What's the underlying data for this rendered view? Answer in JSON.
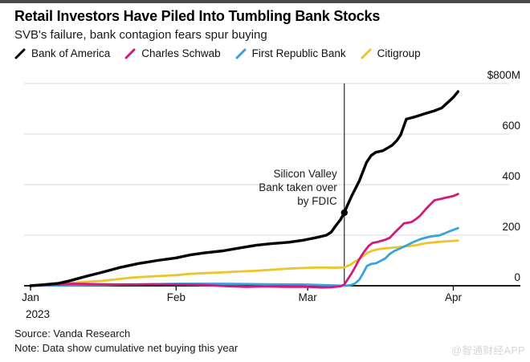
{
  "header": {
    "title": "Retail Investors Have Piled Into Tumbling Bank Stocks",
    "subtitle": "SVB's failure, bank contagion fears spur buying"
  },
  "legend": [
    {
      "label": "Bank of America",
      "color": "#000000"
    },
    {
      "label": "Charles Schwab",
      "color": "#d3197d"
    },
    {
      "label": "First Republic Bank",
      "color": "#36a3dd"
    },
    {
      "label": "Citigroup",
      "color": "#eec42a"
    }
  ],
  "chart_data": {
    "type": "line",
    "title": "Retail Investors Have Piled Into Tumbling Bank Stocks",
    "subtitle": "SVB's failure, bank contagion fears spur buying",
    "unit": "USD millions, cumulative net buying",
    "x_axis": {
      "note": "days since Jan 1 2023",
      "domain_days": [
        0,
        103
      ],
      "months": [
        {
          "label": "Jan",
          "day": 0,
          "year": "2023"
        },
        {
          "label": "Feb",
          "day": 31
        },
        {
          "label": "Mar",
          "day": 59
        },
        {
          "label": "Apr",
          "day": 90
        }
      ]
    },
    "y_axis": {
      "range": [
        0,
        800
      ],
      "ticks": [
        {
          "label": "$800M",
          "value": 800
        },
        {
          "label": "600",
          "value": 600
        },
        {
          "label": "400",
          "value": 400
        },
        {
          "label": "200",
          "value": 200
        },
        {
          "label": "0",
          "value": 0
        }
      ]
    },
    "annotation": {
      "lines": [
        "Silicon Valley",
        "Bank taken over",
        "by FDIC"
      ],
      "event_day": 66.8,
      "dot_value": 289
    },
    "series": [
      {
        "name": "Bank of America",
        "color": "#000000",
        "points": [
          [
            0,
            0
          ],
          [
            2,
            3
          ],
          [
            4,
            6
          ],
          [
            6,
            10
          ],
          [
            8,
            18
          ],
          [
            10,
            28
          ],
          [
            12,
            38
          ],
          [
            15,
            52
          ],
          [
            17,
            62
          ],
          [
            19,
            72
          ],
          [
            21,
            80
          ],
          [
            23,
            88
          ],
          [
            25,
            94
          ],
          [
            27,
            100
          ],
          [
            29,
            105
          ],
          [
            31,
            110
          ],
          [
            34,
            122
          ],
          [
            37,
            130
          ],
          [
            41,
            138
          ],
          [
            44,
            148
          ],
          [
            48,
            160
          ],
          [
            51,
            166
          ],
          [
            55,
            172
          ],
          [
            58,
            180
          ],
          [
            61,
            191
          ],
          [
            63,
            200
          ],
          [
            64,
            212
          ],
          [
            65,
            238
          ],
          [
            66,
            262
          ],
          [
            66.8,
            289
          ],
          [
            67.5,
            320
          ],
          [
            68.5,
            360
          ],
          [
            70,
            415
          ],
          [
            71.5,
            487
          ],
          [
            72.5,
            515
          ],
          [
            73.5,
            528
          ],
          [
            75,
            534
          ],
          [
            77,
            556
          ],
          [
            78,
            575
          ],
          [
            78.8,
            597
          ],
          [
            80,
            659
          ],
          [
            82,
            669
          ],
          [
            84,
            681
          ],
          [
            86,
            692
          ],
          [
            87.5,
            703
          ],
          [
            89,
            728
          ],
          [
            90,
            745
          ],
          [
            91,
            768
          ]
        ]
      },
      {
        "name": "Charles Schwab",
        "color": "#d3197d",
        "points": [
          [
            0,
            0
          ],
          [
            3,
            3
          ],
          [
            6,
            5
          ],
          [
            9,
            8
          ],
          [
            12,
            7
          ],
          [
            15,
            6
          ],
          [
            18,
            5
          ],
          [
            22,
            5
          ],
          [
            26,
            6
          ],
          [
            31,
            5
          ],
          [
            35,
            4
          ],
          [
            38,
            2
          ],
          [
            42,
            -2
          ],
          [
            46,
            -4
          ],
          [
            50,
            -3
          ],
          [
            54,
            -4
          ],
          [
            58,
            -4
          ],
          [
            60,
            -5
          ],
          [
            62,
            -7
          ],
          [
            64,
            -6
          ],
          [
            66,
            -2
          ],
          [
            66.8,
            5
          ],
          [
            67.5,
            25
          ],
          [
            68.3,
            48
          ],
          [
            69,
            70
          ],
          [
            70,
            105
          ],
          [
            71,
            134
          ],
          [
            72,
            158
          ],
          [
            72.8,
            169
          ],
          [
            74,
            174
          ],
          [
            75.5,
            182
          ],
          [
            76.5,
            190
          ],
          [
            77.5,
            210
          ],
          [
            78.5,
            228
          ],
          [
            79.5,
            247
          ],
          [
            81,
            251
          ],
          [
            82,
            263
          ],
          [
            83,
            278
          ],
          [
            84,
            300
          ],
          [
            85,
            320
          ],
          [
            86,
            338
          ],
          [
            87.5,
            344
          ],
          [
            88.5,
            349
          ],
          [
            90,
            355
          ],
          [
            91,
            363
          ]
        ]
      },
      {
        "name": "First Republic Bank",
        "color": "#36a3dd",
        "points": [
          [
            0,
            0
          ],
          [
            5,
            1
          ],
          [
            10,
            2
          ],
          [
            15,
            3
          ],
          [
            20,
            5
          ],
          [
            25,
            6
          ],
          [
            31,
            8
          ],
          [
            35,
            8
          ],
          [
            40,
            8
          ],
          [
            45,
            7
          ],
          [
            50,
            6
          ],
          [
            55,
            5
          ],
          [
            58,
            5
          ],
          [
            62,
            3
          ],
          [
            65,
            1
          ],
          [
            66.8,
            0
          ],
          [
            68,
            2
          ],
          [
            69,
            8
          ],
          [
            70,
            24
          ],
          [
            70.8,
            50
          ],
          [
            71.6,
            78
          ],
          [
            72.5,
            86
          ],
          [
            73.5,
            89
          ],
          [
            74.5,
            98
          ],
          [
            75.5,
            108
          ],
          [
            76.5,
            126
          ],
          [
            77.5,
            138
          ],
          [
            78.5,
            146
          ],
          [
            80,
            159
          ],
          [
            81.5,
            173
          ],
          [
            83,
            184
          ],
          [
            84.5,
            192
          ],
          [
            86,
            197
          ],
          [
            87,
            199
          ],
          [
            88,
            206
          ],
          [
            89,
            214
          ],
          [
            90,
            221
          ],
          [
            91,
            228
          ]
        ]
      },
      {
        "name": "Citigroup",
        "color": "#eec42a",
        "points": [
          [
            0,
            0
          ],
          [
            2,
            2
          ],
          [
            4,
            4
          ],
          [
            6,
            6
          ],
          [
            8,
            10
          ],
          [
            10,
            13
          ],
          [
            13,
            17
          ],
          [
            15,
            19
          ],
          [
            17,
            23
          ],
          [
            19,
            27
          ],
          [
            21,
            31
          ],
          [
            23,
            34
          ],
          [
            25,
            36
          ],
          [
            27,
            38
          ],
          [
            29,
            40
          ],
          [
            31,
            42
          ],
          [
            34,
            47
          ],
          [
            37,
            50
          ],
          [
            41,
            53
          ],
          [
            44,
            56
          ],
          [
            48,
            59
          ],
          [
            51,
            63
          ],
          [
            55,
            68
          ],
          [
            58,
            70
          ],
          [
            61,
            72
          ],
          [
            63,
            72
          ],
          [
            65,
            71
          ],
          [
            66.8,
            73
          ],
          [
            68,
            82
          ],
          [
            69,
            95
          ],
          [
            70,
            106
          ],
          [
            71,
            120
          ],
          [
            71.8,
            131
          ],
          [
            73,
            140
          ],
          [
            74.5,
            146
          ],
          [
            76,
            149
          ],
          [
            78,
            152
          ],
          [
            80,
            156
          ],
          [
            82,
            160
          ],
          [
            84,
            168
          ],
          [
            86,
            172
          ],
          [
            88,
            175
          ],
          [
            90,
            177
          ],
          [
            91,
            179
          ]
        ]
      }
    ]
  },
  "footer": {
    "source": "Source: Vanda Research",
    "note": "Note: Data show cumulative net buying this year"
  },
  "watermark": "@智通财经APP"
}
